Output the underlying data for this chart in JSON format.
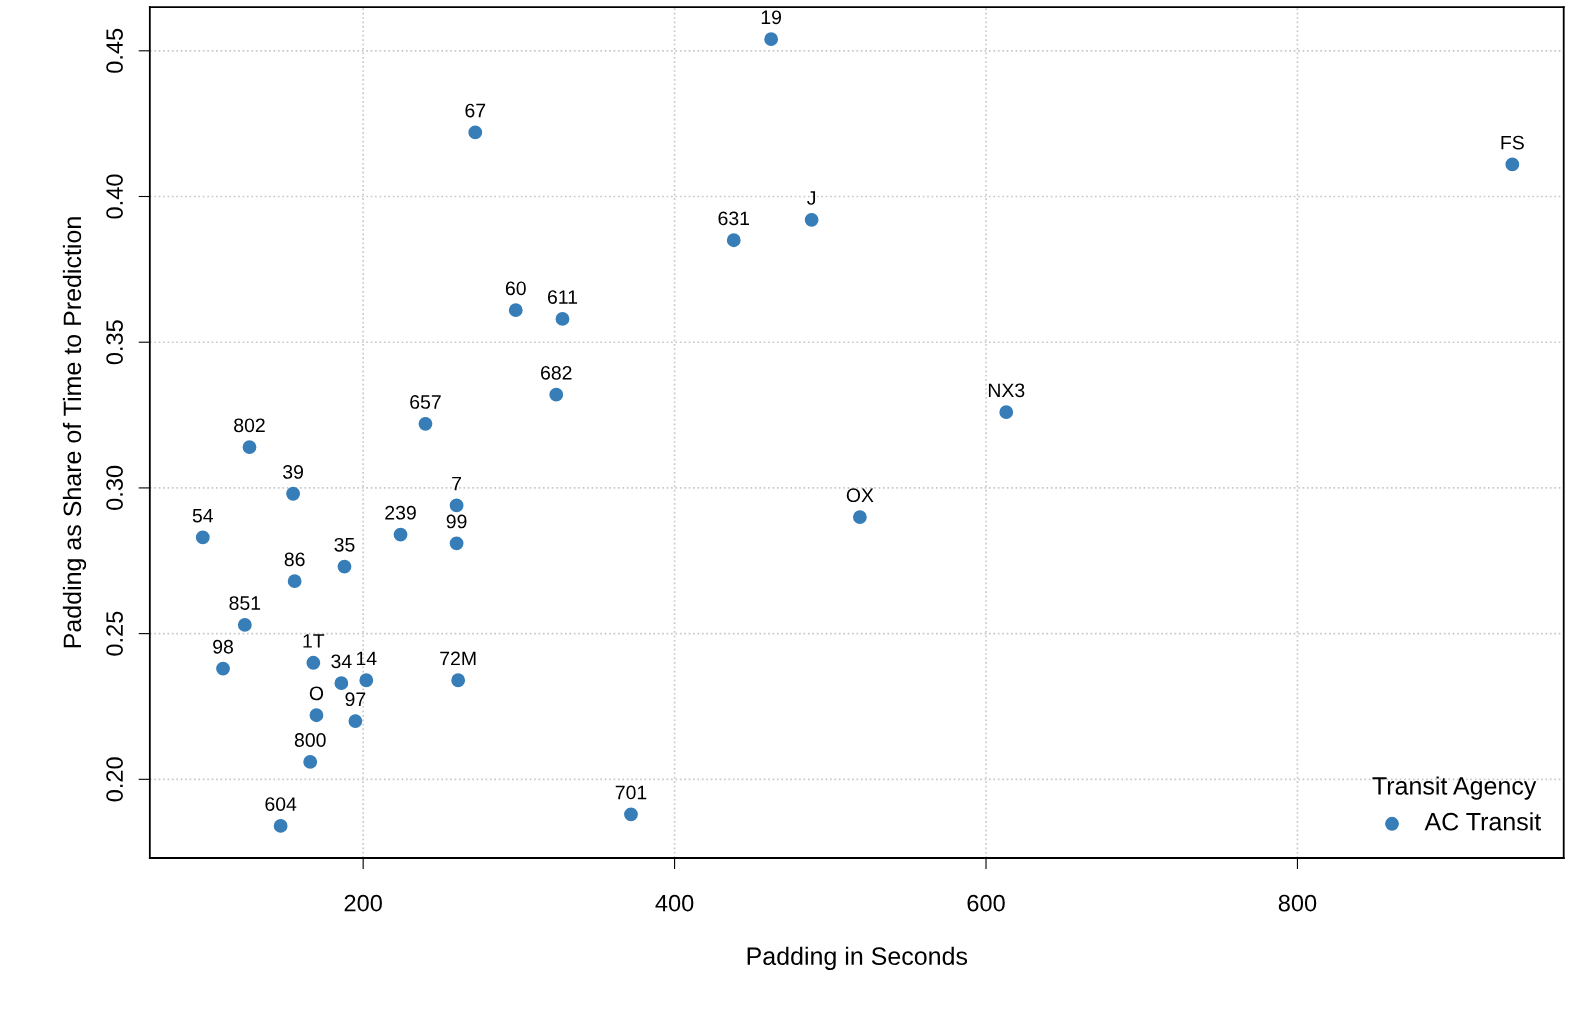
{
  "chart_data": {
    "type": "scatter",
    "xlabel": "Padding in Seconds",
    "ylabel": "Padding as Share of Time to Prediction",
    "legend_title": "Transit Agency",
    "legend": "bottom right",
    "grid": true,
    "marker": "circle",
    "xlim": [
      63,
      971
    ],
    "ylim": [
      0.173,
      0.465
    ],
    "xticks": [
      200,
      400,
      600,
      800
    ],
    "yticks": [
      {
        "value": 0.2,
        "label": "0.20"
      },
      0.25,
      {
        "value": 0.3,
        "label": "0.30"
      },
      0.35,
      {
        "value": 0.4,
        "label": "0.40"
      },
      0.45
    ],
    "series": [
      {
        "name": "AC Transit",
        "color": "#377eb8",
        "x": [
          462,
          272,
          938,
          488,
          438,
          298,
          328,
          324,
          613,
          240,
          127,
          155,
          260,
          519,
          97,
          224,
          260,
          188,
          156,
          124,
          168,
          110,
          186,
          202,
          261,
          170,
          195,
          166,
          372,
          147
        ],
        "values": [
          0.454,
          0.422,
          0.411,
          0.392,
          0.385,
          0.361,
          0.358,
          0.332,
          0.326,
          0.322,
          0.314,
          0.298,
          0.294,
          0.29,
          0.283,
          0.284,
          0.281,
          0.273,
          0.268,
          0.253,
          0.24,
          0.238,
          0.233,
          0.234,
          0.234,
          0.222,
          0.22,
          0.206,
          0.188,
          0.184
        ]
      }
    ],
    "annotations": [
      {
        "text": "19",
        "x": 462,
        "y": 0.454
      },
      {
        "text": "67",
        "x": 272,
        "y": 0.422
      },
      {
        "text": "FS",
        "x": 938,
        "y": 0.411
      },
      {
        "text": "J",
        "x": 488,
        "y": 0.392
      },
      {
        "text": "631",
        "x": 438,
        "y": 0.385
      },
      {
        "text": "60",
        "x": 298,
        "y": 0.361
      },
      {
        "text": "611",
        "x": 328,
        "y": 0.358
      },
      {
        "text": "682",
        "x": 324,
        "y": 0.332
      },
      {
        "text": "NX3",
        "x": 613,
        "y": 0.326
      },
      {
        "text": "657",
        "x": 240,
        "y": 0.322
      },
      {
        "text": "802",
        "x": 127,
        "y": 0.314
      },
      {
        "text": "39",
        "x": 155,
        "y": 0.298
      },
      {
        "text": "7",
        "x": 260,
        "y": 0.294
      },
      {
        "text": "OX",
        "x": 519,
        "y": 0.29
      },
      {
        "text": "54",
        "x": 97,
        "y": 0.283
      },
      {
        "text": "239",
        "x": 224,
        "y": 0.284
      },
      {
        "text": "99",
        "x": 260,
        "y": 0.281
      },
      {
        "text": "35",
        "x": 188,
        "y": 0.273
      },
      {
        "text": "86",
        "x": 156,
        "y": 0.268
      },
      {
        "text": "851",
        "x": 124,
        "y": 0.253
      },
      {
        "text": "1T",
        "x": 168,
        "y": 0.24
      },
      {
        "text": "98",
        "x": 110,
        "y": 0.238
      },
      {
        "text": "34",
        "x": 186,
        "y": 0.233
      },
      {
        "text": "14",
        "x": 202,
        "y": 0.234
      },
      {
        "text": "72M",
        "x": 261,
        "y": 0.234
      },
      {
        "text": "O",
        "x": 170,
        "y": 0.222
      },
      {
        "text": "97",
        "x": 195,
        "y": 0.22
      },
      {
        "text": "800",
        "x": 166,
        "y": 0.206
      },
      {
        "text": "701",
        "x": 372,
        "y": 0.188
      },
      {
        "text": "604",
        "x": 147,
        "y": 0.184
      }
    ]
  }
}
